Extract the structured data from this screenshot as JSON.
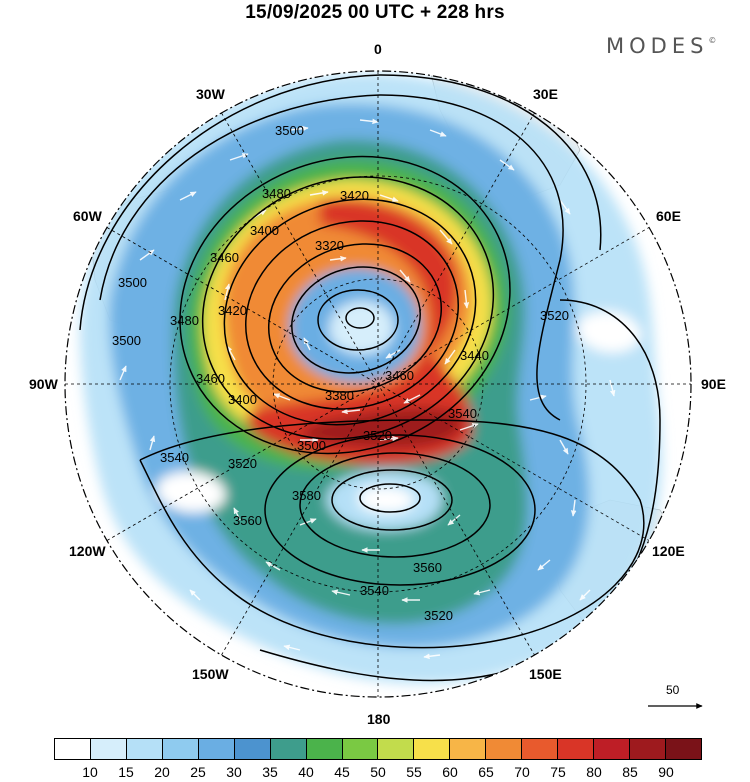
{
  "header": {
    "title": "15/09/2025  00 UTC  + 228 hrs",
    "brand": "MODES",
    "brand_mark": "©"
  },
  "map": {
    "projection": "polar-stereographic-south",
    "longitude_labels": [
      {
        "text": "0",
        "lon": 0
      },
      {
        "text": "30E",
        "lon": 30
      },
      {
        "text": "60E",
        "lon": 60
      },
      {
        "text": "90E",
        "lon": 90
      },
      {
        "text": "120E",
        "lon": 120
      },
      {
        "text": "150E",
        "lon": 150
      },
      {
        "text": "180",
        "lon": 180
      },
      {
        "text": "150W",
        "lon": -150
      },
      {
        "text": "120W",
        "lon": -120
      },
      {
        "text": "90W",
        "lon": -90
      },
      {
        "text": "60W",
        "lon": -60
      },
      {
        "text": "30W",
        "lon": -30
      }
    ],
    "contour_labels": [
      "3500",
      "3480",
      "3420",
      "3460",
      "3400",
      "3320",
      "3440",
      "3520",
      "3500",
      "3480",
      "3420",
      "3460",
      "3500",
      "3400",
      "3380",
      "3460",
      "3540",
      "3500",
      "3520",
      "3520",
      "3540",
      "3560",
      "3580",
      "3560",
      "3540",
      "3520"
    ],
    "wind_scale_label": "50",
    "colors": {
      "land": "#f0f0f0",
      "contour": "#000000",
      "vector": "#ffffff"
    }
  },
  "colorbar": {
    "unit": "",
    "labels": [
      "10",
      "15",
      "20",
      "25",
      "30",
      "35",
      "40",
      "45",
      "50",
      "55",
      "60",
      "65",
      "70",
      "75",
      "80",
      "85",
      "90"
    ],
    "colors": [
      "#ffffff",
      "#d6eefb",
      "#b5e0f7",
      "#8fcbef",
      "#6aaee3",
      "#4c93cf",
      "#3e9d8c",
      "#4bb34b",
      "#7ac943",
      "#c2dc4c",
      "#f7e04a",
      "#f7b547",
      "#f08a35",
      "#e85a2d",
      "#d93527",
      "#be1e26",
      "#9e1a1e",
      "#7a1218"
    ]
  }
}
